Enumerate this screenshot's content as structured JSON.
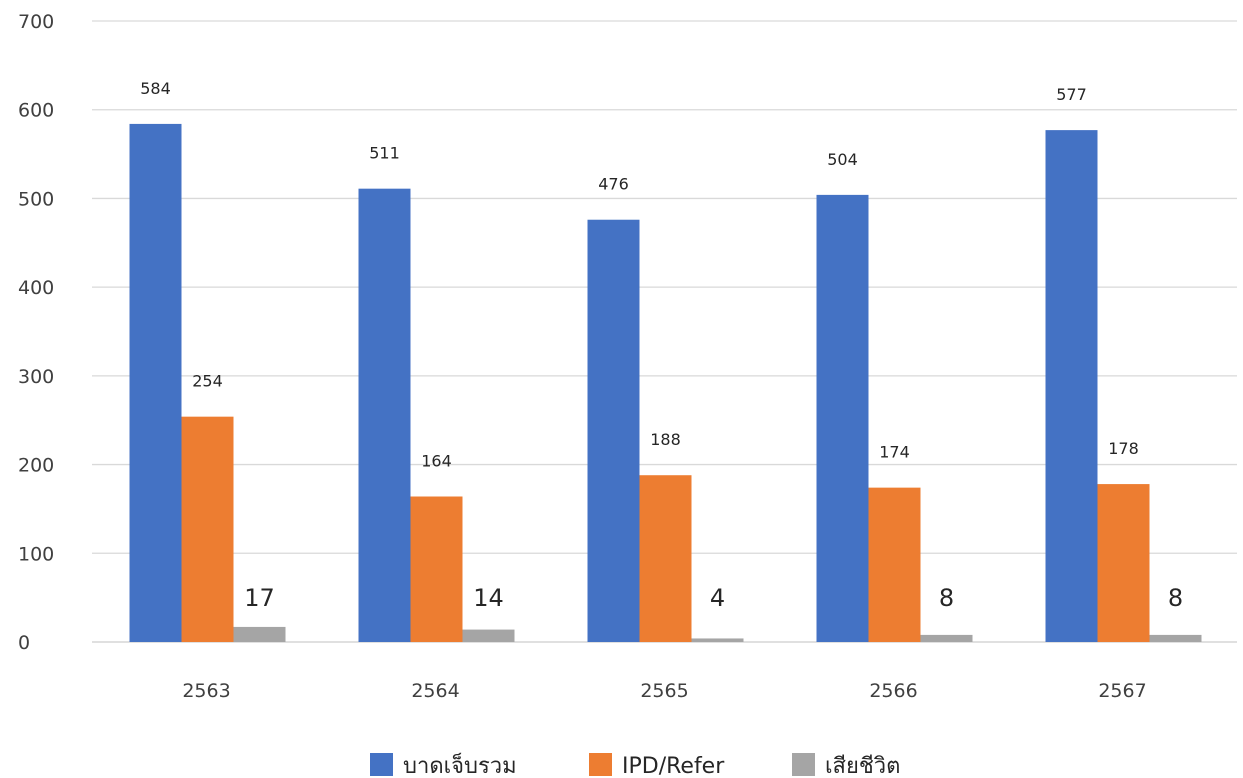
{
  "chart_data": {
    "type": "bar",
    "categories": [
      "2563",
      "2564",
      "2565",
      "2566",
      "2567"
    ],
    "series": [
      {
        "name": "บาดเจ็บรวม",
        "color": "#4472C4",
        "values": [
          584,
          511,
          476,
          504,
          577
        ]
      },
      {
        "name": "IPD/Refer",
        "color": "#ED7D31",
        "values": [
          254,
          164,
          188,
          174,
          178
        ]
      },
      {
        "name": "เสียชีวิต",
        "color": "#A5A5A5",
        "values": [
          17,
          14,
          4,
          8,
          8
        ]
      }
    ],
    "title": "",
    "xlabel": "",
    "ylabel": "",
    "ylim": [
      0,
      700
    ],
    "yticks": [
      0,
      100,
      200,
      300,
      400,
      500,
      600,
      700
    ],
    "grid": true,
    "legend": "bottom"
  }
}
